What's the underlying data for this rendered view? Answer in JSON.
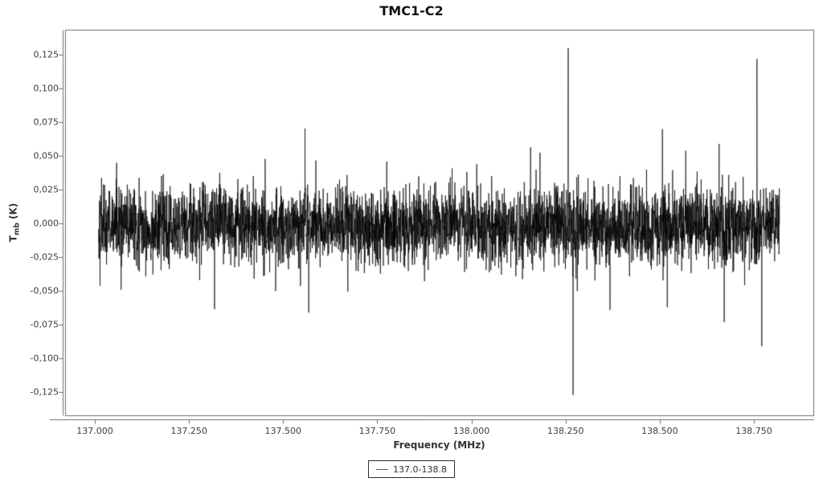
{
  "chart_data": {
    "type": "line",
    "title": "TMC1-C2",
    "xlabel": "Frequency (MHz)",
    "ylabel": {
      "main": "T",
      "sub": "mb",
      "unit": "(K)"
    },
    "legend": {
      "label": "137.0-138.8"
    },
    "x_range_mhz": [
      137.01,
      138.818
    ],
    "x_axis": {
      "ticks": [
        {
          "value": 137.0,
          "label": "137.000"
        },
        {
          "value": 137.25,
          "label": "137.250"
        },
        {
          "value": 137.5,
          "label": "137.500"
        },
        {
          "value": 137.75,
          "label": "137.750"
        },
        {
          "value": 138.0,
          "label": "138.000"
        },
        {
          "value": 138.25,
          "label": "138.250"
        },
        {
          "value": 138.5,
          "label": "138.500"
        },
        {
          "value": 138.75,
          "label": "138.750"
        }
      ]
    },
    "y_axis": {
      "ticks": [
        {
          "value": 0.125,
          "label": "0,125"
        },
        {
          "value": 0.1,
          "label": "0,100"
        },
        {
          "value": 0.075,
          "label": "0,075"
        },
        {
          "value": 0.05,
          "label": "0,050"
        },
        {
          "value": 0.025,
          "label": "0,025"
        },
        {
          "value": 0.0,
          "label": "0,000"
        },
        {
          "value": -0.025,
          "label": "-0,025"
        },
        {
          "value": -0.05,
          "label": "-0,050"
        },
        {
          "value": -0.075,
          "label": "-0,075"
        },
        {
          "value": -0.1,
          "label": "-0,100"
        },
        {
          "value": -0.125,
          "label": "-0,125"
        }
      ]
    },
    "noise": {
      "mean": -0.002,
      "sigma": 0.014,
      "n_points": 4200,
      "seed": 42,
      "wave_amp": 0.0018,
      "wave_cycles": 6
    },
    "spikes": [
      {
        "freq_mhz": 137.058,
        "t_mb_k": 0.045
      },
      {
        "freq_mhz": 137.07,
        "t_mb_k": -0.049
      },
      {
        "freq_mhz": 137.318,
        "t_mb_k": -0.0635
      },
      {
        "freq_mhz": 137.452,
        "t_mb_k": 0.048
      },
      {
        "freq_mhz": 137.48,
        "t_mb_k": -0.05
      },
      {
        "freq_mhz": 137.558,
        "t_mb_k": 0.0705
      },
      {
        "freq_mhz": 137.568,
        "t_mb_k": -0.066
      },
      {
        "freq_mhz": 137.672,
        "t_mb_k": -0.0505
      },
      {
        "freq_mhz": 137.775,
        "t_mb_k": 0.046
      },
      {
        "freq_mhz": 138.014,
        "t_mb_k": 0.044
      },
      {
        "freq_mhz": 138.157,
        "t_mb_k": 0.0565
      },
      {
        "freq_mhz": 138.182,
        "t_mb_k": 0.0525
      },
      {
        "freq_mhz": 138.257,
        "t_mb_k": 0.13
      },
      {
        "freq_mhz": 138.27,
        "t_mb_k": -0.127
      },
      {
        "freq_mhz": 138.281,
        "t_mb_k": -0.05
      },
      {
        "freq_mhz": 138.368,
        "t_mb_k": -0.064
      },
      {
        "freq_mhz": 138.507,
        "t_mb_k": 0.07
      },
      {
        "freq_mhz": 138.52,
        "t_mb_k": -0.062
      },
      {
        "freq_mhz": 138.569,
        "t_mb_k": 0.054
      },
      {
        "freq_mhz": 138.658,
        "t_mb_k": 0.059
      },
      {
        "freq_mhz": 138.671,
        "t_mb_k": -0.073
      },
      {
        "freq_mhz": 138.758,
        "t_mb_k": 0.122
      },
      {
        "freq_mhz": 138.771,
        "t_mb_k": -0.091
      }
    ],
    "colors": {
      "line": "#000000",
      "frame": "#6f6f6f",
      "axis": "#6f6f6f",
      "tick_text": "#3d3d3d",
      "title_text": "#111111",
      "legend_border": "#2b2b2b",
      "legend_line": "#5a5a5a"
    }
  }
}
